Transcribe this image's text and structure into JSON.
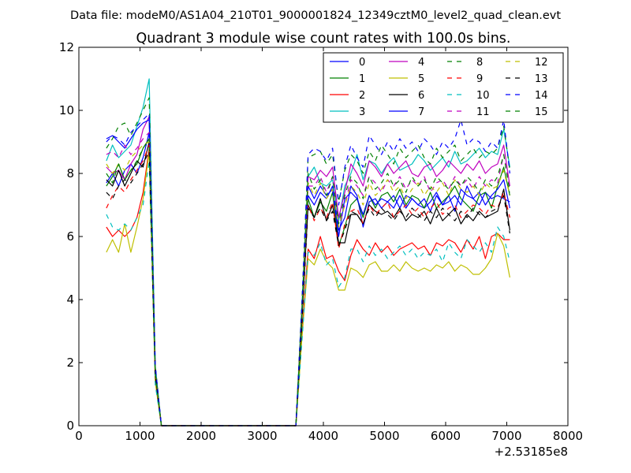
{
  "figure": {
    "suptitle": "Data file: modeM0/AS1A04_210T01_9000001824_12349cztM0_level2_quad_clean.evt",
    "background": "#ffffff"
  },
  "chart_data": {
    "type": "line",
    "title": "Quadrant 3 module wise count rates with 100.0s bins.",
    "xlabel": "",
    "ylabel": "",
    "xlim": [
      0,
      8000
    ],
    "ylim": [
      0,
      12
    ],
    "x_offset_label": "+2.53185e8",
    "x_ticks": [
      0,
      1000,
      2000,
      3000,
      4000,
      5000,
      6000,
      7000,
      8000
    ],
    "y_ticks": [
      0,
      2,
      4,
      6,
      8,
      10,
      12
    ],
    "legend": {
      "placement": "top-right",
      "columns": 4
    },
    "x": [
      450,
      550,
      650,
      750,
      850,
      950,
      1050,
      1150,
      1250,
      1350,
      1450,
      1550,
      1650,
      1750,
      1850,
      1950,
      2050,
      2150,
      2250,
      2350,
      2450,
      2550,
      2650,
      2750,
      2850,
      2950,
      3050,
      3150,
      3250,
      3350,
      3450,
      3550,
      3650,
      3750,
      3850,
      3950,
      4050,
      4150,
      4250,
      4350,
      4450,
      4550,
      4650,
      4750,
      4850,
      4950,
      5050,
      5150,
      5250,
      5350,
      5450,
      5550,
      5650,
      5750,
      5850,
      5950,
      6050,
      6150,
      6250,
      6350,
      6450,
      6550,
      6650,
      6750,
      6850,
      6950,
      7050
    ],
    "series": [
      {
        "name": "0",
        "color": "#0000ff",
        "dash": "solid",
        "values": [
          7.7,
          8.0,
          7.6,
          8.1,
          8.3,
          8.0,
          8.5,
          9.3,
          1.7,
          0,
          0,
          0,
          0,
          0,
          0,
          0,
          0,
          0,
          0,
          0,
          0,
          0,
          0,
          0,
          0,
          0,
          0,
          0,
          0,
          0,
          0,
          0,
          3.6,
          7.3,
          7.0,
          7.4,
          7.2,
          7.6,
          6.2,
          6.6,
          7.6,
          7.3,
          6.3,
          7.1,
          7.2,
          6.9,
          7.1,
          7.3,
          6.9,
          7.3,
          7.2,
          7.0,
          6.9,
          7.1,
          7.4,
          7.0,
          7.3,
          6.8,
          7.5,
          7.3,
          7.2,
          7.0,
          7.4,
          7.2,
          7.3,
          7.2,
          7.1
        ]
      },
      {
        "name": "1",
        "color": "#008000",
        "dash": "solid",
        "values": [
          7.6,
          7.9,
          8.3,
          7.8,
          8.1,
          8.3,
          8.8,
          9.1,
          1.6,
          0,
          0,
          0,
          0,
          0,
          0,
          0,
          0,
          0,
          0,
          0,
          0,
          0,
          0,
          0,
          0,
          0,
          0,
          0,
          0,
          0,
          0,
          0,
          3.5,
          7.2,
          6.6,
          7.1,
          6.8,
          7.4,
          5.7,
          6.3,
          7.0,
          7.2,
          6.6,
          7.3,
          6.9,
          7.3,
          7.4,
          7.1,
          7.5,
          7.0,
          7.3,
          7.2,
          6.9,
          7.4,
          6.9,
          7.1,
          7.3,
          7.6,
          7.2,
          7.0,
          6.8,
          7.3,
          7.4,
          6.9,
          7.6,
          8.2,
          7.3
        ]
      },
      {
        "name": "2",
        "color": "#ff0000",
        "dash": "solid",
        "values": [
          6.3,
          6.0,
          6.2,
          6.0,
          6.2,
          6.6,
          7.4,
          8.8,
          1.4,
          0,
          0,
          0,
          0,
          0,
          0,
          0,
          0,
          0,
          0,
          0,
          0,
          0,
          0,
          0,
          0,
          0,
          0,
          0,
          0,
          0,
          0,
          0,
          2.9,
          5.6,
          5.3,
          6.0,
          5.3,
          5.4,
          4.9,
          4.6,
          5.4,
          5.9,
          5.6,
          5.4,
          5.8,
          5.5,
          5.7,
          5.4,
          5.6,
          5.7,
          5.8,
          5.6,
          5.7,
          5.4,
          5.8,
          5.7,
          5.9,
          5.8,
          5.5,
          5.9,
          5.6,
          6.0,
          5.3,
          6.0,
          6.1,
          5.9,
          5.9
        ]
      },
      {
        "name": "3",
        "color": "#00bfbf",
        "dash": "solid",
        "values": [
          8.4,
          8.9,
          8.5,
          8.7,
          8.9,
          9.5,
          10.1,
          11.0,
          1.9,
          0,
          0,
          0,
          0,
          0,
          0,
          0,
          0,
          0,
          0,
          0,
          0,
          0,
          0,
          0,
          0,
          0,
          0,
          0,
          0,
          0,
          0,
          0,
          3.9,
          7.9,
          8.2,
          7.7,
          7.6,
          7.8,
          6.5,
          7.6,
          8.0,
          8.6,
          7.8,
          8.4,
          8.3,
          8.0,
          8.3,
          8.5,
          8.1,
          8.2,
          8.3,
          8.6,
          8.4,
          8.1,
          8.3,
          8.5,
          8.2,
          8.7,
          8.3,
          8.4,
          8.6,
          8.8,
          8.5,
          8.7,
          8.6,
          9.4,
          8.2
        ]
      },
      {
        "name": "4",
        "color": "#bf00bf",
        "dash": "solid",
        "values": [
          8.2,
          8.0,
          8.1,
          7.8,
          8.3,
          8.6,
          9.4,
          9.8,
          1.7,
          0,
          0,
          0,
          0,
          0,
          0,
          0,
          0,
          0,
          0,
          0,
          0,
          0,
          0,
          0,
          0,
          0,
          0,
          0,
          0,
          0,
          0,
          0,
          3.7,
          7.9,
          7.8,
          8.1,
          7.9,
          8.2,
          6.6,
          7.4,
          8.3,
          8.0,
          7.6,
          8.4,
          8.2,
          7.9,
          8.3,
          8.0,
          8.2,
          8.4,
          8.0,
          7.9,
          8.2,
          8.3,
          7.9,
          8.1,
          8.4,
          8.2,
          8.0,
          8.3,
          8.1,
          8.4,
          8.0,
          8.2,
          8.3,
          8.9,
          7.6
        ]
      },
      {
        "name": "5",
        "color": "#bfbf00",
        "dash": "solid",
        "values": [
          5.5,
          5.9,
          5.5,
          6.4,
          5.5,
          6.3,
          7.2,
          8.7,
          1.4,
          0,
          0,
          0,
          0,
          0,
          0,
          0,
          0,
          0,
          0,
          0,
          0,
          0,
          0,
          0,
          0,
          0,
          0,
          0,
          0,
          0,
          0,
          0,
          2.8,
          5.3,
          5.1,
          5.6,
          5.2,
          5.0,
          4.3,
          4.3,
          5.0,
          4.9,
          4.7,
          5.1,
          5.2,
          4.9,
          4.9,
          5.1,
          4.9,
          5.2,
          5.0,
          4.9,
          5.0,
          4.9,
          5.1,
          5.0,
          5.2,
          4.9,
          5.1,
          5.0,
          4.8,
          4.8,
          5.0,
          5.3,
          6.1,
          5.7,
          4.7
        ]
      },
      {
        "name": "6",
        "color": "#000000",
        "dash": "solid",
        "values": [
          7.8,
          7.6,
          8.1,
          7.6,
          8.0,
          8.4,
          8.2,
          9.0,
          1.6,
          0,
          0,
          0,
          0,
          0,
          0,
          0,
          0,
          0,
          0,
          0,
          0,
          0,
          0,
          0,
          0,
          0,
          0,
          0,
          0,
          0,
          0,
          0,
          3.4,
          7.0,
          6.6,
          7.2,
          6.5,
          7.0,
          5.8,
          5.8,
          6.7,
          6.7,
          6.4,
          7.0,
          6.8,
          6.7,
          6.8,
          6.6,
          6.9,
          6.5,
          6.7,
          6.6,
          6.8,
          6.4,
          6.9,
          6.5,
          6.7,
          6.9,
          6.4,
          6.7,
          6.5,
          6.8,
          6.6,
          6.7,
          6.8,
          7.5,
          6.2
        ]
      },
      {
        "name": "7",
        "color": "#0000ff",
        "dash": "solid",
        "values": [
          9.1,
          9.2,
          9.0,
          8.8,
          9.1,
          9.4,
          9.6,
          9.7,
          1.8,
          0,
          0,
          0,
          0,
          0,
          0,
          0,
          0,
          0,
          0,
          0,
          0,
          0,
          0,
          0,
          0,
          0,
          0,
          0,
          0,
          0,
          0,
          0,
          3.6,
          7.6,
          7.2,
          7.6,
          7.3,
          7.5,
          6.0,
          7.2,
          7.4,
          7.2,
          6.7,
          7.3,
          7.0,
          7.2,
          7.1,
          6.9,
          7.3,
          6.9,
          7.2,
          7.0,
          7.2,
          6.8,
          7.3,
          7.0,
          7.1,
          7.3,
          7.0,
          7.6,
          7.2,
          7.4,
          7.0,
          7.3,
          7.5,
          7.8,
          6.9
        ]
      },
      {
        "name": "8",
        "color": "#008000",
        "dash": "dashed",
        "values": [
          8.8,
          9.1,
          9.5,
          9.6,
          9.2,
          9.6,
          10.0,
          10.4,
          1.9,
          0,
          0,
          0,
          0,
          0,
          0,
          0,
          0,
          0,
          0,
          0,
          0,
          0,
          0,
          0,
          0,
          0,
          0,
          0,
          0,
          0,
          0,
          0,
          4.0,
          8.5,
          8.6,
          8.7,
          8.3,
          8.6,
          7.1,
          8.1,
          8.6,
          8.4,
          8.0,
          8.7,
          8.4,
          8.9,
          8.6,
          8.3,
          8.8,
          8.5,
          8.7,
          8.9,
          8.5,
          8.3,
          8.8,
          8.5,
          8.7,
          8.9,
          8.4,
          8.6,
          8.8,
          8.5,
          8.7,
          8.6,
          8.8,
          9.5,
          8.1
        ]
      },
      {
        "name": "9",
        "color": "#ff0000",
        "dash": "dashed",
        "values": [
          6.9,
          7.3,
          7.6,
          7.4,
          7.8,
          8.1,
          8.4,
          8.9,
          1.6,
          0,
          0,
          0,
          0,
          0,
          0,
          0,
          0,
          0,
          0,
          0,
          0,
          0,
          0,
          0,
          0,
          0,
          0,
          0,
          0,
          0,
          0,
          0,
          3.3,
          7.0,
          6.5,
          6.9,
          6.6,
          7.1,
          5.6,
          6.4,
          6.8,
          6.9,
          6.4,
          7.0,
          6.7,
          6.9,
          7.1,
          6.6,
          6.8,
          7.0,
          6.7,
          6.9,
          6.6,
          6.9,
          7.1,
          6.7,
          6.9,
          7.0,
          6.6,
          6.8,
          7.0,
          6.9,
          6.7,
          7.0,
          6.9,
          7.4,
          6.6
        ]
      },
      {
        "name": "10",
        "color": "#00bfbf",
        "dash": "dashed",
        "values": [
          6.7,
          6.3,
          6.2,
          6.4,
          6.2,
          6.6,
          7.0,
          8.4,
          1.3,
          0,
          0,
          0,
          0,
          0,
          0,
          0,
          0,
          0,
          0,
          0,
          0,
          0,
          0,
          0,
          0,
          0,
          0,
          0,
          0,
          0,
          0,
          0,
          2.7,
          5.5,
          5.4,
          5.8,
          5.1,
          5.3,
          4.4,
          4.7,
          5.6,
          5.6,
          5.2,
          5.7,
          5.4,
          5.6,
          5.3,
          5.5,
          5.7,
          5.4,
          5.6,
          5.3,
          5.5,
          5.4,
          5.6,
          5.2,
          5.8,
          5.5,
          5.3,
          5.9,
          5.7,
          5.5,
          5.8,
          5.5,
          6.3,
          6.0,
          5.2
        ]
      },
      {
        "name": "11",
        "color": "#bf00bf",
        "dash": "dashed",
        "values": [
          8.6,
          8.7,
          8.5,
          8.9,
          8.6,
          8.8,
          9.1,
          9.3,
          1.7,
          0,
          0,
          0,
          0,
          0,
          0,
          0,
          0,
          0,
          0,
          0,
          0,
          0,
          0,
          0,
          0,
          0,
          0,
          0,
          0,
          0,
          0,
          0,
          3.7,
          7.6,
          7.6,
          7.9,
          7.4,
          7.9,
          6.4,
          7.0,
          7.8,
          7.6,
          7.3,
          7.9,
          7.7,
          7.4,
          7.8,
          7.6,
          7.9,
          7.5,
          7.8,
          7.6,
          7.9,
          7.4,
          7.7,
          7.8,
          7.5,
          7.9,
          7.6,
          7.8,
          7.5,
          7.9,
          7.6,
          7.8,
          7.7,
          8.6,
          7.5
        ]
      },
      {
        "name": "12",
        "color": "#bfbf00",
        "dash": "dashed",
        "values": [
          8.3,
          8.0,
          8.3,
          8.1,
          8.5,
          8.7,
          8.9,
          9.0,
          1.7,
          0,
          0,
          0,
          0,
          0,
          0,
          0,
          0,
          0,
          0,
          0,
          0,
          0,
          0,
          0,
          0,
          0,
          0,
          0,
          0,
          0,
          0,
          0,
          3.6,
          7.7,
          7.3,
          7.7,
          7.2,
          7.5,
          6.3,
          7.0,
          7.6,
          7.4,
          7.0,
          7.7,
          7.3,
          7.5,
          7.8,
          7.4,
          7.6,
          7.2,
          7.5,
          7.7,
          7.3,
          7.6,
          7.4,
          7.7,
          7.3,
          7.8,
          7.5,
          7.4,
          7.6,
          7.3,
          7.7,
          7.5,
          7.6,
          8.1,
          7.3
        ]
      },
      {
        "name": "13",
        "color": "#000000",
        "dash": "dashed",
        "values": [
          7.4,
          7.2,
          7.6,
          7.8,
          7.7,
          8.0,
          8.3,
          8.7,
          1.6,
          0,
          0,
          0,
          0,
          0,
          0,
          0,
          0,
          0,
          0,
          0,
          0,
          0,
          0,
          0,
          0,
          0,
          0,
          0,
          0,
          0,
          0,
          0,
          3.3,
          6.9,
          6.6,
          6.9,
          6.5,
          6.8,
          5.7,
          6.2,
          6.8,
          6.7,
          6.4,
          6.9,
          6.6,
          6.9,
          6.7,
          6.5,
          6.8,
          6.6,
          6.9,
          6.7,
          6.5,
          6.8,
          6.6,
          6.9,
          6.7,
          6.5,
          6.8,
          6.6,
          6.9,
          6.7,
          6.6,
          6.8,
          6.9,
          7.3,
          6.1
        ]
      },
      {
        "name": "14",
        "color": "#0000ff",
        "dash": "dashed",
        "values": [
          9.0,
          9.2,
          9.1,
          8.9,
          9.3,
          9.5,
          9.7,
          9.9,
          1.9,
          0,
          0,
          0,
          0,
          0,
          0,
          0,
          0,
          0,
          0,
          0,
          0,
          0,
          0,
          0,
          0,
          0,
          0,
          0,
          0,
          0,
          0,
          0,
          3.9,
          8.6,
          8.8,
          8.7,
          8.4,
          8.8,
          7.0,
          8.2,
          8.9,
          8.5,
          8.2,
          9.2,
          8.9,
          8.6,
          9.0,
          8.7,
          9.1,
          8.8,
          9.0,
          8.7,
          9.1,
          8.9,
          8.6,
          9.0,
          8.8,
          9.1,
          9.7,
          8.9,
          9.1,
          9.0,
          8.7,
          9.0,
          8.8,
          9.7,
          8.0
        ]
      },
      {
        "name": "15",
        "color": "#008000",
        "dash": "dashed",
        "values": [
          8.0,
          7.7,
          8.3,
          7.8,
          8.1,
          8.4,
          8.8,
          9.1,
          1.7,
          0,
          0,
          0,
          0,
          0,
          0,
          0,
          0,
          0,
          0,
          0,
          0,
          0,
          0,
          0,
          0,
          0,
          0,
          0,
          0,
          0,
          0,
          0,
          3.6,
          8.0,
          7.5,
          7.8,
          7.3,
          7.9,
          6.4,
          7.3,
          7.9,
          7.7,
          7.2,
          7.9,
          7.5,
          7.7,
          8.0,
          7.6,
          7.8,
          7.4,
          7.9,
          7.6,
          7.8,
          7.5,
          7.9,
          7.7,
          7.5,
          7.8,
          7.6,
          7.9,
          7.7,
          7.4,
          7.8,
          7.6,
          7.9,
          8.6,
          7.4
        ]
      }
    ]
  }
}
